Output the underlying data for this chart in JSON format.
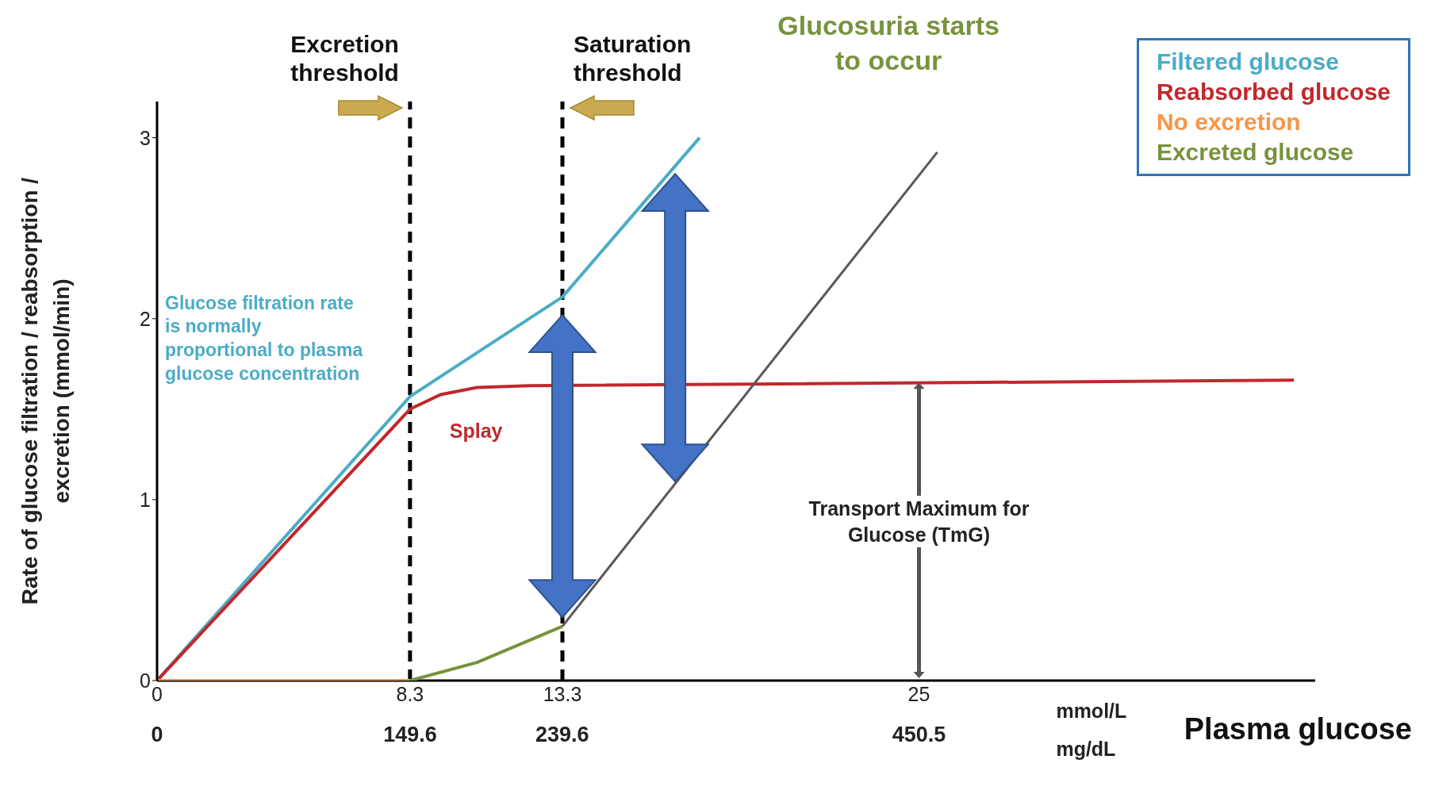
{
  "chart_data": {
    "type": "line",
    "xlabel": "Plasma glucose",
    "ylabel": "Rate of glucose filtration / reabsorption / excretion  (mmol/min)",
    "xlim": [
      0,
      38
    ],
    "xticks": [
      0,
      8.3,
      13.3,
      25
    ],
    "x2lim": [
      0,
      684.8
    ],
    "x2ticks": [
      0,
      149.6,
      239.6,
      450.5
    ],
    "ylim": [
      0,
      3.2
    ],
    "yticks": [
      0,
      1,
      2,
      3
    ],
    "grid": false,
    "legend": "top right",
    "marker": "none",
    "line_style": "solid",
    "series": [
      {
        "name": "Filtered glucose",
        "color": "#4bacc6",
        "x": [
          0,
          8.3,
          13.3,
          17.8
        ],
        "values": [
          0,
          1.57,
          2.12,
          3.0
        ]
      },
      {
        "name": "Reabsorbed glucose",
        "color": "#c0282d",
        "x": [
          0,
          8.3,
          9.3,
          10.5,
          12.2,
          37.3
        ],
        "values": [
          0,
          1.5,
          1.58,
          1.62,
          1.63,
          1.66
        ]
      },
      {
        "name": "No excretion",
        "color": "#f79646",
        "x": [
          0,
          8.3
        ],
        "values": [
          0,
          0
        ]
      },
      {
        "name": "Excreted glucose",
        "color": "#77933c",
        "x": [
          8.3,
          10.5,
          13.3
        ],
        "values": [
          0,
          0.1,
          0.3
        ]
      },
      {
        "color": "#595959",
        "x": [
          13.3,
          25.6
        ],
        "values": [
          0.3,
          2.92
        ]
      }
    ],
    "ref_lines": [
      {
        "axis": "x",
        "value": 8.3,
        "label": "Excretion threshold",
        "color": "#000000",
        "line_style": "dashed"
      },
      {
        "axis": "x",
        "value": 13.3,
        "label": "Saturation threshold",
        "color": "#000000",
        "line_style": "dashed"
      }
    ],
    "annotations": [
      "Glucosuria starts to occur",
      "Glucose filtration rate is normally proportional to plasma glucose concentration",
      "Splay",
      "Transport Maximum for Glucose (TmG)",
      "mmol/L",
      "mg/dL"
    ]
  }
}
